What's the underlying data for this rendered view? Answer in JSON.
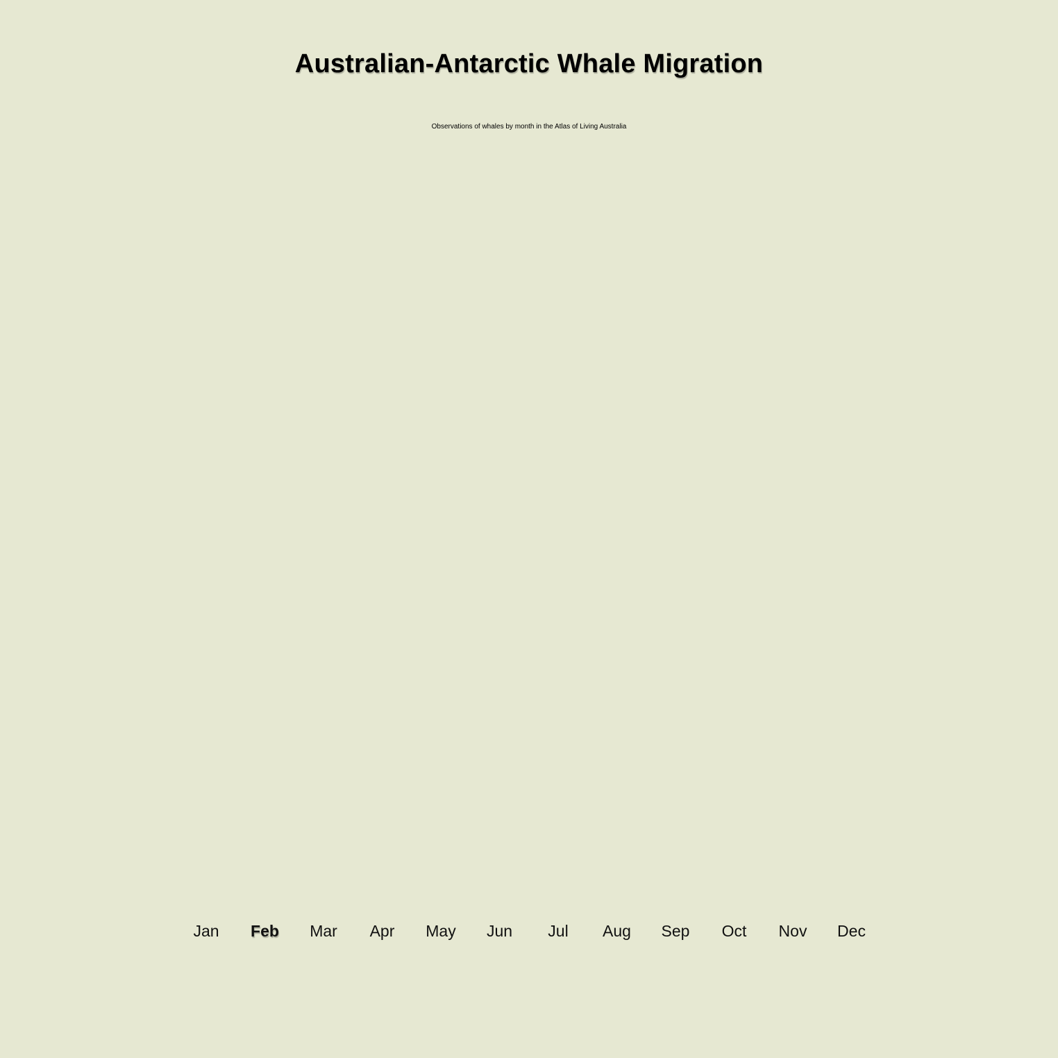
{
  "title": "Australian-Antarctic Whale Migration",
  "subtitle": "Observations of whales by month in the Atlas of Living Australia",
  "months": [
    "Jan",
    "Feb",
    "Mar",
    "Apr",
    "May",
    "Jun",
    "Jul",
    "Aug",
    "Sep",
    "Oct",
    "Nov",
    "Dec"
  ],
  "selected_month": "Feb",
  "colors": {
    "background": "#e6e8d2",
    "text": "#000000"
  }
}
